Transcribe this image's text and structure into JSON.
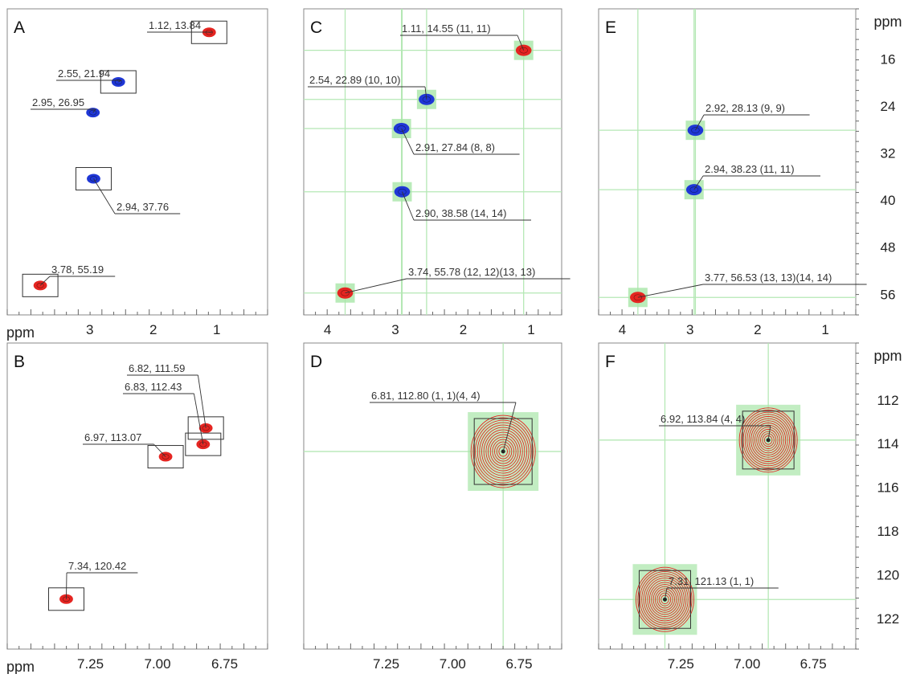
{
  "chart_data": [
    {
      "panel": "A",
      "type": "scatter",
      "x_axis": {
        "unit_label": "ppm",
        "ticks": [
          "3",
          "2",
          "1"
        ],
        "range": [
          4.3,
          0.2
        ],
        "reversed": true
      },
      "y_axis": {
        "range": [
          10,
          60
        ],
        "reversed": true
      },
      "grid": false,
      "peaks": [
        {
          "x": 1.12,
          "y": 13.84,
          "label": "1.12, 13.84",
          "color": "#e52521",
          "boxed": true
        },
        {
          "x": 2.55,
          "y": 21.94,
          "label": "2.55, 21.94",
          "color": "#1f37d6",
          "boxed": true
        },
        {
          "x": 2.95,
          "y": 26.95,
          "label": "2.95, 26.95",
          "color": "#1f37d6",
          "boxed": false
        },
        {
          "x": 2.94,
          "y": 37.76,
          "label": "2.94, 37.76",
          "color": "#1f37d6",
          "boxed": true
        },
        {
          "x": 3.78,
          "y": 55.19,
          "label": "3.78, 55.19",
          "color": "#e52521",
          "boxed": true
        }
      ]
    },
    {
      "panel": "B",
      "type": "scatter",
      "x_axis": {
        "unit_label": "ppm",
        "ticks": [
          "7.25",
          "7.00",
          "6.75"
        ],
        "range": [
          7.56,
          6.59
        ],
        "reversed": true
      },
      "y_axis": {
        "range": [
          107.2,
          123.0
        ],
        "reversed": true
      },
      "grid": false,
      "peaks": [
        {
          "x": 6.82,
          "y": 111.59,
          "label": "6.82, 111.59",
          "color": "#e52521",
          "boxed": true
        },
        {
          "x": 6.83,
          "y": 112.43,
          "label": "6.83, 112.43",
          "color": "#e52521",
          "boxed": true
        },
        {
          "x": 6.97,
          "y": 113.07,
          "label": "6.97, 113.07",
          "color": "#e52521",
          "boxed": true
        },
        {
          "x": 7.34,
          "y": 120.42,
          "label": "7.34, 120.42",
          "color": "#e52521",
          "boxed": true
        }
      ]
    },
    {
      "panel": "C",
      "type": "scatter",
      "x_axis": {
        "ticks": [
          "4",
          "3",
          "2",
          "1"
        ],
        "range": [
          4.35,
          0.55
        ],
        "reversed": true
      },
      "y_axis": {
        "range": [
          7.5,
          59.5
        ],
        "reversed": true
      },
      "grid": true,
      "peaks": [
        {
          "x": 1.11,
          "y": 14.55,
          "label": "1.11, 14.55 (11, 11)",
          "color": "#e52521"
        },
        {
          "x": 2.54,
          "y": 22.89,
          "label": "2.54, 22.89 (10, 10)",
          "color": "#1f37d6"
        },
        {
          "x": 2.91,
          "y": 27.84,
          "label": "2.91, 27.84 (8, 8)",
          "color": "#1f37d6"
        },
        {
          "x": 2.9,
          "y": 38.58,
          "label": "2.90, 38.58 (14, 14)",
          "color": "#1f37d6"
        },
        {
          "x": 3.74,
          "y": 55.78,
          "label": "3.74, 55.78 (12, 12)(13, 13)",
          "color": "#e52521"
        }
      ]
    },
    {
      "panel": "D",
      "type": "scatter",
      "x_axis": {
        "ticks": [
          "7.25",
          "7.00",
          "6.75"
        ],
        "range": [
          7.56,
          6.59
        ],
        "reversed": true
      },
      "y_axis": {
        "range": [
          107.2,
          123.0
        ],
        "reversed": true
      },
      "grid": true,
      "peaks": [
        {
          "x": 6.81,
          "y": 112.8,
          "label": "6.81, 112.80 (1, 1)(4, 4)",
          "color": "#e52521"
        }
      ]
    },
    {
      "panel": "E",
      "type": "scatter",
      "x_axis": {
        "ticks": [
          "4",
          "3",
          "2",
          "1"
        ],
        "range": [
          4.35,
          0.55
        ],
        "reversed": true
      },
      "y_axis": {
        "unit_label": "ppm",
        "ticks": [
          "16",
          "24",
          "32",
          "40",
          "48",
          "56"
        ],
        "range": [
          7.5,
          59.5
        ],
        "reversed": true
      },
      "grid": true,
      "peaks": [
        {
          "x": 2.92,
          "y": 28.13,
          "label": "2.92, 28.13 (9, 9)",
          "color": "#1f37d6"
        },
        {
          "x": 2.94,
          "y": 38.23,
          "label": "2.94, 38.23 (11, 11)",
          "color": "#1f37d6"
        },
        {
          "x": 3.77,
          "y": 56.53,
          "label": "3.77, 56.53 (13, 13)(14, 14)",
          "color": "#e52521"
        }
      ]
    },
    {
      "panel": "F",
      "type": "scatter",
      "x_axis": {
        "ticks": [
          "7.25",
          "7.00",
          "6.75"
        ],
        "range": [
          7.56,
          6.59
        ],
        "reversed": true
      },
      "y_axis": {
        "unit_label": "ppm",
        "ticks": [
          "112",
          "114",
          "116",
          "118",
          "120",
          "122"
        ],
        "range": [
          109.4,
          123.4
        ],
        "reversed": true
      },
      "grid": true,
      "peaks": [
        {
          "x": 6.92,
          "y": 113.84,
          "label": "6.92, 113.84 (4, 4)",
          "color": "#e52521"
        },
        {
          "x": 7.31,
          "y": 121.13,
          "label": "7.31, 121.13 (1, 1)",
          "color": "#e52521"
        }
      ]
    }
  ]
}
